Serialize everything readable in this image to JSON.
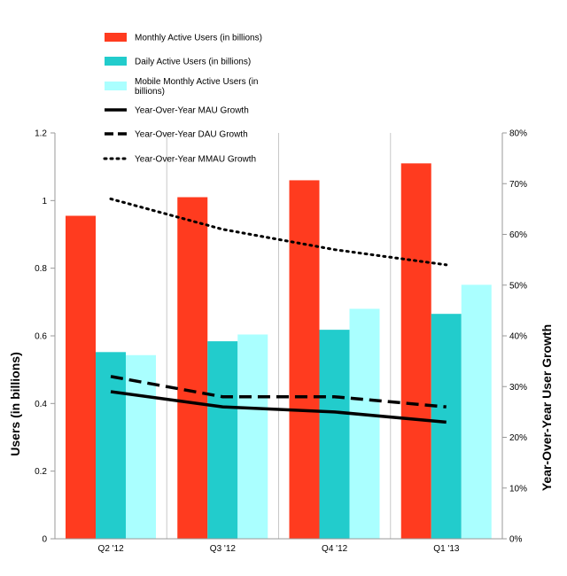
{
  "chart_data": {
    "type": "bar",
    "categories": [
      "Q2 '12",
      "Q3 '12",
      "Q4 '12",
      "Q1 '13"
    ],
    "ylabel": "Users (in billions)",
    "y2label": "Year-Over-Year User Growth",
    "ylim": [
      0,
      1.2
    ],
    "y2lim": [
      0,
      0.8
    ],
    "yticks": [
      "0",
      "0.2",
      "0.4",
      "0.6",
      "0.8",
      "1",
      "1.2"
    ],
    "y2ticks": [
      "0%",
      "10%",
      "20%",
      "30%",
      "40%",
      "50%",
      "60%",
      "70%",
      "80%"
    ],
    "grid": true,
    "legend_position": "top-left",
    "bar_series": [
      {
        "name": "Monthly Active Users (in billions)",
        "color": "#ff3b1f",
        "values": [
          0.955,
          1.01,
          1.06,
          1.11
        ]
      },
      {
        "name": "Daily Active Users (in billions)",
        "color": "#22cccc",
        "values": [
          0.552,
          0.584,
          0.618,
          0.665
        ]
      },
      {
        "name": "Mobile Monthly Active Users (in billions)",
        "color": "#aaffff",
        "values": [
          0.543,
          0.604,
          0.68,
          0.751
        ]
      }
    ],
    "line_series": [
      {
        "name": "Year-Over-Year MAU Growth",
        "style": "solid",
        "values": [
          0.29,
          0.26,
          0.25,
          0.23
        ]
      },
      {
        "name": "Year-Over-Year DAU Growth",
        "style": "dashed",
        "values": [
          0.32,
          0.28,
          0.28,
          0.26
        ]
      },
      {
        "name": "Year-Over-Year MMAU Growth",
        "style": "dotted",
        "values": [
          0.67,
          0.61,
          0.57,
          0.54
        ]
      }
    ]
  }
}
